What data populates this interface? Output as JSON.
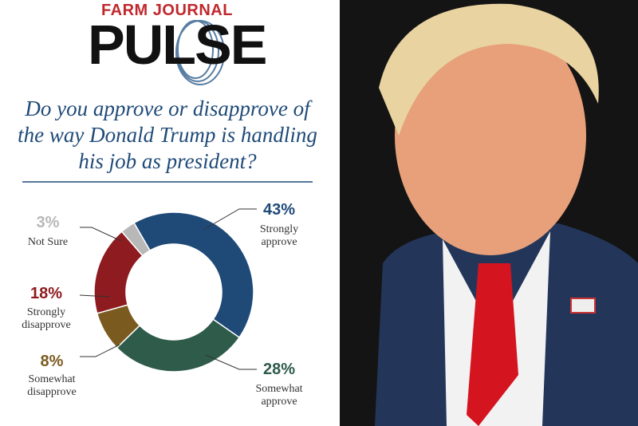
{
  "brand": {
    "kicker": "FARM JOURNAL",
    "name": "PULSE"
  },
  "chart_data": {
    "type": "donut",
    "title": "Do you approve or disapprove of the way Donald Trump is handling his job as president?",
    "categories": [
      "Strongly approve",
      "Somewhat approve",
      "Somewhat disapprove",
      "Strongly disapprove",
      "Not Sure"
    ],
    "values": [
      43,
      28,
      8,
      18,
      3
    ],
    "value_labels": [
      "43%",
      "28%",
      "8%",
      "18%",
      "3%"
    ],
    "colors": [
      "#1f4a78",
      "#2f5b4b",
      "#7b5a1f",
      "#8e1b1f",
      "#b8b8b8"
    ]
  }
}
